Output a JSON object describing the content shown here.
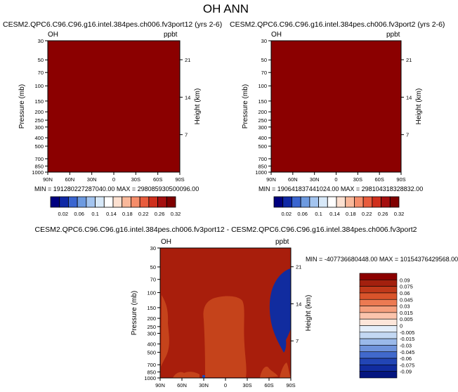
{
  "main_title": "OH ANN",
  "colors": {
    "field_dark_red": "#8b0000",
    "diff_orange": "#c5431b",
    "diff_blue": "#112c9f"
  },
  "panels": [
    {
      "title": "CESM2.QPC6.C96.C96.g16.intel.384pes.ch006.fv3port12 (yrs 2-6)",
      "left_label": "OH",
      "right_label": "ppbt",
      "ylabel": "Pressure (mb)",
      "y2label": "Height (km)",
      "stats": "MIN = 191280227287040.00   MAX = 298085930500096.00"
    },
    {
      "title": "CESM2.QPC6.C96.C96.g16.intel.384pes.ch006.fv3port2 (yrs 2-6)",
      "left_label": "OH",
      "right_label": "ppbt",
      "ylabel": "Pressure (mb)",
      "y2label": "Height (km)",
      "stats": "MIN = 190641837441024.00   MAX = 298104318328832.00"
    },
    {
      "title": "CESM2.QPC6.C96.C96.g16.intel.384pes.ch006.fv3port12 - CESM2.QPC6.C96.C96.g16.intel.384pes.ch006.fv3port2",
      "left_label": "OH",
      "right_label": "ppbt",
      "ylabel": "Pressure (mb)",
      "y2label": "Height (km)",
      "stats": "MIN = -4077366804​48.00   MAX = 10154376429568.00"
    }
  ],
  "chart_data": [
    {
      "type": "heatmap",
      "panel": "fv3port12",
      "x_tick_labels": [
        "90N",
        "60N",
        "30N",
        "0",
        "30S",
        "60S",
        "90S"
      ],
      "y_tick_labels": [
        "30",
        "50",
        "70",
        "100",
        "150",
        "200",
        "250",
        "300",
        "400",
        "500",
        "700",
        "850",
        "1000"
      ],
      "y_tick_values": [
        30,
        50,
        70,
        100,
        150,
        200,
        250,
        300,
        400,
        500,
        700,
        850,
        1000
      ],
      "y_scale": "log",
      "ylim": [
        1000,
        30
      ],
      "y2_tick_labels": [
        "21",
        "14",
        "7"
      ],
      "y2_tick_values_km": [
        21,
        14,
        7
      ],
      "field_color": "#8b0000",
      "colorbar": {
        "labels": [
          "0.02",
          "0.06",
          "0.1",
          "0.14",
          "0.18",
          "0.22",
          "0.26",
          "0.32"
        ],
        "colors": [
          "#00007f",
          "#0f28a5",
          "#3a65d0",
          "#6d9ae0",
          "#a3c4ef",
          "#d7e8f8",
          "#ffffff",
          "#fce0d0",
          "#f9b89a",
          "#f58d6a",
          "#e85c3d",
          "#cf2f1c",
          "#a50f0f",
          "#7f0000"
        ]
      }
    },
    {
      "type": "heatmap",
      "panel": "fv3port2",
      "x_tick_labels": [
        "90N",
        "60N",
        "30N",
        "0",
        "30S",
        "60S",
        "90S"
      ],
      "y_tick_labels": [
        "30",
        "50",
        "70",
        "100",
        "150",
        "200",
        "250",
        "300",
        "400",
        "500",
        "700",
        "850",
        "1000"
      ],
      "y_tick_values": [
        30,
        50,
        70,
        100,
        150,
        200,
        250,
        300,
        400,
        500,
        700,
        850,
        1000
      ],
      "y_scale": "log",
      "ylim": [
        1000,
        30
      ],
      "y2_tick_labels": [
        "21",
        "14",
        "7"
      ],
      "y2_tick_values_km": [
        21,
        14,
        7
      ],
      "field_color": "#8b0000",
      "colorbar": {
        "labels": [
          "0.02",
          "0.06",
          "0.1",
          "0.14",
          "0.18",
          "0.22",
          "0.26",
          "0.32"
        ],
        "colors": [
          "#00007f",
          "#0f28a5",
          "#3a65d0",
          "#6d9ae0",
          "#a3c4ef",
          "#d7e8f8",
          "#ffffff",
          "#fce0d0",
          "#f9b89a",
          "#f58d6a",
          "#e85c3d",
          "#cf2f1c",
          "#a50f0f",
          "#7f0000"
        ]
      }
    },
    {
      "type": "heatmap",
      "panel": "difference",
      "x_tick_labels": [
        "90N",
        "60N",
        "30N",
        "0",
        "30S",
        "60S",
        "90S"
      ],
      "y_tick_labels": [
        "30",
        "50",
        "70",
        "100",
        "150",
        "200",
        "250",
        "300",
        "400",
        "500",
        "700",
        "850",
        "1000"
      ],
      "y_tick_values": [
        30,
        50,
        70,
        100,
        150,
        200,
        250,
        300,
        400,
        500,
        700,
        850,
        1000
      ],
      "y_scale": "log",
      "ylim": [
        1000,
        30
      ],
      "y2_tick_labels": [
        "21",
        "14",
        "7"
      ],
      "y2_tick_values_km": [
        21,
        14,
        7
      ],
      "background_color": "#a81e0c",
      "colorbar": {
        "orientation": "vertical",
        "labels": [
          "0.09",
          "0.075",
          "0.06",
          "0.045",
          "0.03",
          "0.015",
          "0.005",
          "0",
          "-0.005",
          "-0.015",
          "-0.03",
          "-0.045",
          "-0.06",
          "-0.075",
          "-0.09"
        ],
        "colors": [
          "#8b0000",
          "#a3200e",
          "#c0391a",
          "#d9542b",
          "#ec7a52",
          "#f59f7d",
          "#fbc4ac",
          "#fde6da",
          "#e4eefa",
          "#c3d8f3",
          "#9ab9ea",
          "#6f93dc",
          "#4169cc",
          "#2245b5",
          "#112c9f",
          "#04157f"
        ]
      }
    }
  ]
}
